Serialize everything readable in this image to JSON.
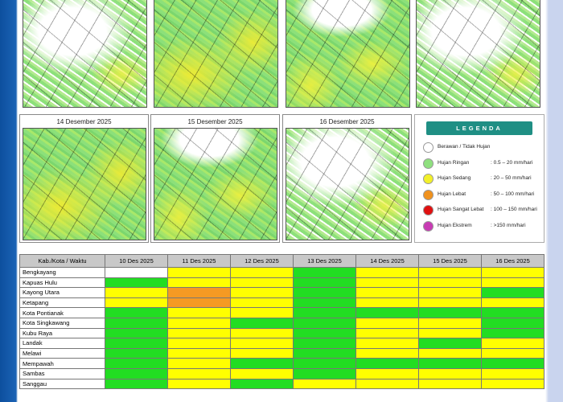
{
  "maps_row2": [
    "14 Desember 2025",
    "15 Desember 2025",
    "16 Desember 2025"
  ],
  "legend": {
    "title": "LEGENDA",
    "items": [
      {
        "label": "Berawan / Tidak Hujan",
        "color": "#ffffff"
      },
      {
        "label": "Hujan Ringan",
        "range": ": 0.5 – 20 mm/hari",
        "color": "#8fe07f"
      },
      {
        "label": "Hujan Sedang",
        "range": ": 20 – 50 mm/hari",
        "color": "#f2f02a"
      },
      {
        "label": "Hujan Lebat",
        "range": ": 50 – 100 mm/hari",
        "color": "#f0921e"
      },
      {
        "label": "Hujan Sangat Lebat",
        "range": ": 100 – 150 mm/hari",
        "color": "#e01010"
      },
      {
        "label": "Hujan Ekstrem",
        "range": ": >150 mm/hari",
        "color": "#c83cb4"
      }
    ]
  },
  "table": {
    "header": [
      "Kab./Kota / Waktu",
      "10 Des 2025",
      "11 Des 2025",
      "12 Des 2025",
      "13 Des 2025",
      "14 Des 2025",
      "15 Des 2025",
      "16 Des 2025"
    ],
    "rows": [
      {
        "name": "Bengkayang",
        "cells": [
          "#ffffff",
          "#ffff00",
          "#ffff00",
          "#22dd22",
          "#ffff00",
          "#ffff00",
          "#ffff00"
        ]
      },
      {
        "name": "Kapuas Hulu",
        "cells": [
          "#22dd22",
          "#ffff00",
          "#ffff00",
          "#22dd22",
          "#ffff00",
          "#ffff00",
          "#ffff00"
        ]
      },
      {
        "name": "Kayong Utara",
        "cells": [
          "#ffff00",
          "#f59a23",
          "#ffff00",
          "#22dd22",
          "#ffff00",
          "#ffff00",
          "#22dd22"
        ]
      },
      {
        "name": "Ketapang",
        "cells": [
          "#ffff00",
          "#f59a23",
          "#ffff00",
          "#22dd22",
          "#ffff00",
          "#ffff00",
          "#ffff00"
        ]
      },
      {
        "name": "Kota Pontianak",
        "cells": [
          "#22dd22",
          "#ffff00",
          "#ffff00",
          "#22dd22",
          "#22dd22",
          "#22dd22",
          "#22dd22"
        ]
      },
      {
        "name": "Kota Singkawang",
        "cells": [
          "#22dd22",
          "#ffff00",
          "#22dd22",
          "#22dd22",
          "#ffff00",
          "#ffff00",
          "#22dd22"
        ]
      },
      {
        "name": "Kubu Raya",
        "cells": [
          "#22dd22",
          "#ffff00",
          "#ffff00",
          "#22dd22",
          "#ffff00",
          "#ffff00",
          "#22dd22"
        ]
      },
      {
        "name": "Landak",
        "cells": [
          "#22dd22",
          "#ffff00",
          "#ffff00",
          "#22dd22",
          "#ffff00",
          "#22dd22",
          "#ffff00"
        ]
      },
      {
        "name": "Melawi",
        "cells": [
          "#22dd22",
          "#ffff00",
          "#ffff00",
          "#22dd22",
          "#ffff00",
          "#ffff00",
          "#ffff00"
        ]
      },
      {
        "name": "Mempawah",
        "cells": [
          "#22dd22",
          "#ffff00",
          "#22dd22",
          "#22dd22",
          "#22dd22",
          "#22dd22",
          "#22dd22"
        ]
      },
      {
        "name": "Sambas",
        "cells": [
          "#22dd22",
          "#ffff00",
          "#ffff00",
          "#22dd22",
          "#ffff00",
          "#ffff00",
          "#ffff00"
        ]
      },
      {
        "name": "Sanggau",
        "cells": [
          "#22dd22",
          "#ffff00",
          "#22dd22",
          "#ffff00",
          "#ffff00",
          "#ffff00",
          "#ffff00"
        ]
      }
    ]
  }
}
